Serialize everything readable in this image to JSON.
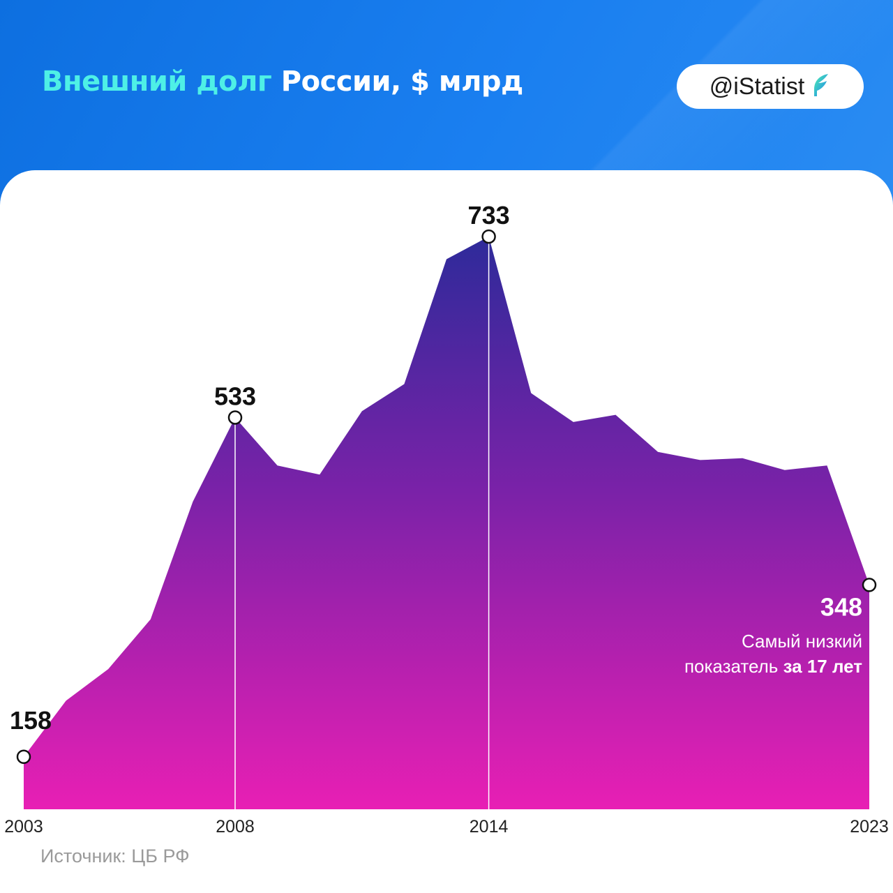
{
  "header": {
    "title_part1": "Внешний долг",
    "title_part2": "России, $ млрд",
    "badge_text": "@iStatist",
    "badge_icon": "feather-logo-icon"
  },
  "source": "Источник: ЦБ РФ",
  "annotation": {
    "line1": "Самый низкий",
    "line2_regular": "показатель ",
    "line2_bold": "за 17 лет"
  },
  "colors": {
    "header_blue": "#0d6fe0",
    "title_accent": "#4ef0e6",
    "area_top": "#2e2a9a",
    "area_mid": "#7b22a8",
    "area_bottom": "#e81fb4"
  },
  "chart_data": {
    "type": "area",
    "x": [
      2003,
      2004,
      2005,
      2006,
      2007,
      2008,
      2009,
      2010,
      2011,
      2012,
      2013,
      2014,
      2015,
      2016,
      2017,
      2018,
      2019,
      2020,
      2021,
      2022,
      2023
    ],
    "values": [
      158,
      220,
      255,
      310,
      440,
      533,
      480,
      470,
      540,
      570,
      708,
      733,
      560,
      528,
      536,
      495,
      486,
      488,
      475,
      480,
      348
    ],
    "ylim": [
      100,
      740
    ],
    "xticks": [
      "2003",
      "2008",
      "2014",
      "2023"
    ],
    "highlighted": [
      {
        "x": 2003,
        "label": "158"
      },
      {
        "x": 2008,
        "label": "533"
      },
      {
        "x": 2014,
        "label": "733"
      },
      {
        "x": 2023,
        "label": "348"
      }
    ],
    "reference_lines_x": [
      2008,
      2014
    ]
  }
}
